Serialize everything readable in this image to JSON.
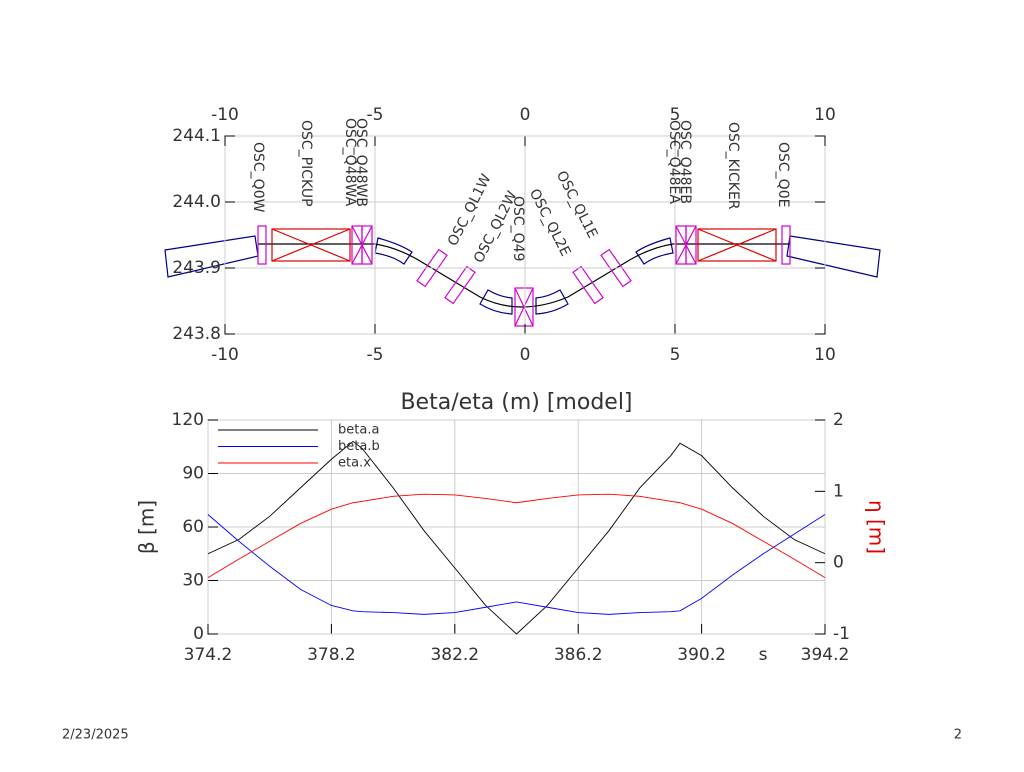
{
  "footer": {
    "date": "2/23/2025",
    "page": "2"
  },
  "chart_data": [
    {
      "type": "layout",
      "xlim": [
        -10,
        10
      ],
      "xticks": [
        -10,
        -5,
        0,
        5,
        10
      ],
      "ylim": [
        243.8,
        244.1
      ],
      "yticks": [
        243.8,
        243.9,
        {
          "value": 244.0,
          "label": "244.0"
        },
        244.1
      ],
      "grid": true,
      "elements": [
        "OSC_Q0W",
        "OSC_PICKUP",
        "OSC_Q48WA",
        "OSC_Q48WB",
        "OSC_QL1W",
        "OSC_QL2W",
        "OSC_Q49",
        "OSC_QL2E",
        "OSC_QL1E",
        "OSC_Q48EA",
        "OSC_Q48EB",
        "OSC_KICKER",
        "OSC_Q0E"
      ]
    },
    {
      "type": "line",
      "title": "Beta/eta (m)  [model]",
      "xlabel": "s",
      "ylabel": "β [m]",
      "y2label": "η [m]",
      "xlim": [
        374.2,
        394.2
      ],
      "xticks": [
        374.2,
        378.2,
        382.2,
        386.2,
        390.2,
        394.2
      ],
      "ylim": [
        0,
        120
      ],
      "yticks": [
        0,
        30,
        60,
        90,
        120
      ],
      "y2lim": [
        -1,
        2
      ],
      "y2ticks": [
        -1,
        0,
        1,
        2
      ],
      "grid": true,
      "x": [
        374.2,
        375.2,
        376.2,
        377.2,
        378.2,
        378.9,
        379.2,
        380.2,
        381.2,
        382.2,
        383.2,
        384.2,
        385.2,
        386.2,
        387.2,
        388.2,
        389.2,
        389.5,
        390.2,
        391.2,
        392.2,
        393.2,
        394.2
      ],
      "series": [
        {
          "name": "beta.a",
          "color": "#000000",
          "values": [
            45,
            53,
            66,
            82,
            98,
            108,
            104,
            82,
            58,
            37,
            16,
            0,
            16,
            37,
            58,
            82,
            100,
            107,
            100,
            82,
            66,
            53,
            45
          ]
        },
        {
          "name": "beta.b",
          "color": "#0000ff",
          "values": [
            67,
            52,
            38,
            25,
            16,
            13,
            12.5,
            12,
            11,
            12,
            15,
            18,
            15,
            12,
            11,
            12,
            12.5,
            13,
            20,
            33,
            45,
            56,
            67
          ]
        },
        {
          "name": "eta.x",
          "color": "#ff0000",
          "axis": "y2",
          "values": [
            -0.21,
            0.05,
            0.3,
            0.55,
            0.75,
            0.84,
            0.86,
            0.93,
            0.96,
            0.95,
            0.9,
            0.84,
            0.9,
            0.95,
            0.96,
            0.93,
            0.86,
            0.84,
            0.75,
            0.55,
            0.3,
            0.05,
            -0.21
          ]
        }
      ]
    }
  ]
}
